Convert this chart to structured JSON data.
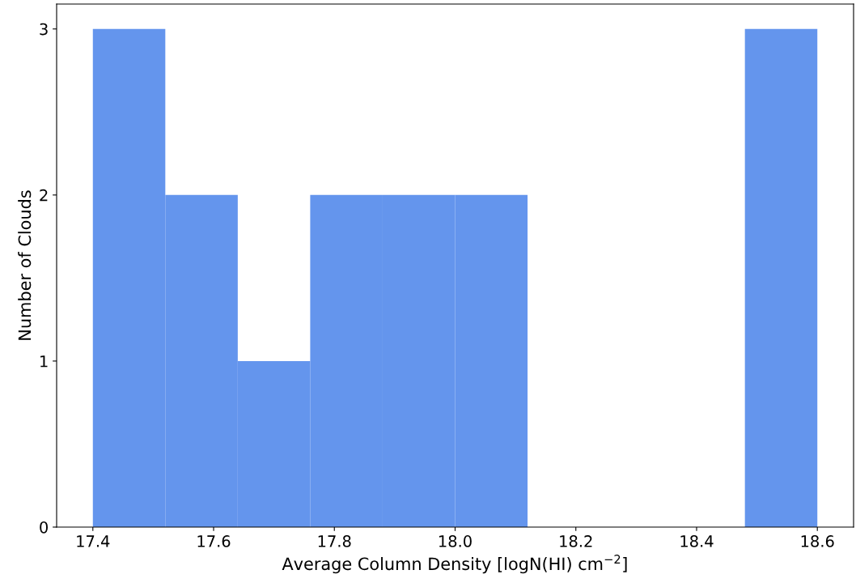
{
  "chart_data": {
    "type": "histogram",
    "xlabel": "Average Column Density [logN(HI) cm$^{−2}$]",
    "ylabel": "Number of Clouds",
    "bins": [
      17.4,
      17.52,
      17.64,
      17.76,
      17.88,
      18.0,
      18.12,
      18.24,
      18.36,
      18.48,
      18.6
    ],
    "values": [
      3,
      2,
      1,
      2,
      2,
      2,
      0,
      0,
      0,
      3
    ],
    "color": "#6495ed",
    "xlim": [
      17.34,
      18.66
    ],
    "ylim": [
      0,
      3.15
    ],
    "xticks": [
      17.4,
      17.6,
      17.8,
      {
        "value": 18,
        "label": "18.0"
      },
      18.2,
      18.4,
      18.6
    ],
    "yticks": [
      0,
      1,
      2,
      3
    ],
    "grid": false
  }
}
